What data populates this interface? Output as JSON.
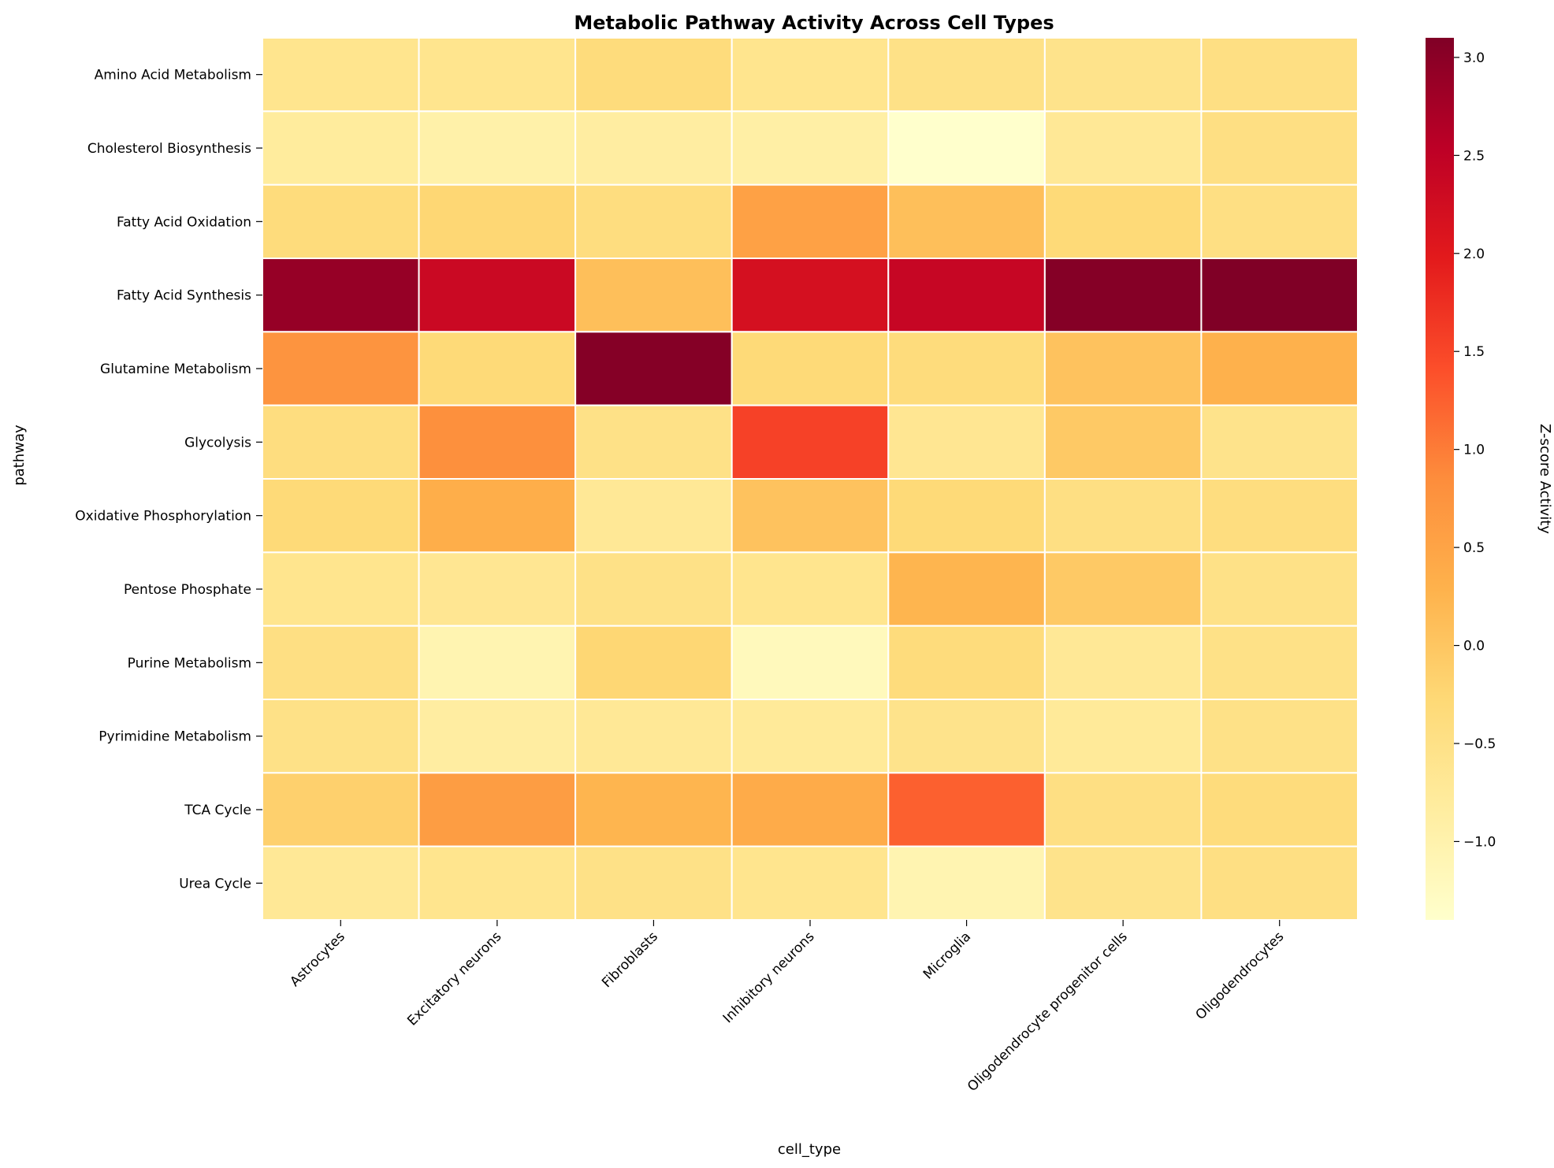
{
  "chart_data": {
    "type": "heatmap",
    "title": "Metabolic Pathway Activity Across Cell Types",
    "xlabel": "cell_type",
    "ylabel": "pathway",
    "colorbar_label": "Z-score Activity",
    "colormap": "YlOrRd",
    "color_range": [
      -1.4,
      3.1
    ],
    "colorbar_ticks": [
      "3.0",
      "2.5",
      "2.0",
      "1.5",
      "1.0",
      "0.5",
      "0.0",
      "−0.5",
      "−1.0"
    ],
    "colorbar_tick_values": [
      3.0,
      2.5,
      2.0,
      1.5,
      1.0,
      0.5,
      0.0,
      -0.5,
      -1.0
    ],
    "columns": [
      "Astrocytes",
      "Excitatory neurons",
      "Fibroblasts",
      "Inhibitory neurons",
      "Microglia",
      "Oligodendrocyte progenitor cells",
      "Oligodendrocytes"
    ],
    "rows": [
      "Amino Acid Metabolism",
      "Cholesterol Biosynthesis",
      "Fatty Acid Oxidation",
      "Fatty Acid Synthesis",
      "Glutamine Metabolism",
      "Glycolysis",
      "Oxidative Phosphorylation",
      "Pentose Phosphate",
      "Purine Metabolism",
      "Pyrimidine Metabolism",
      "TCA Cycle",
      "Urea Cycle"
    ],
    "values": [
      [
        -0.6,
        -0.6,
        -0.35,
        -0.6,
        -0.5,
        -0.55,
        -0.45
      ],
      [
        -0.8,
        -0.95,
        -0.85,
        -0.9,
        -1.4,
        -0.7,
        -0.45
      ],
      [
        -0.35,
        -0.25,
        -0.4,
        0.55,
        0.1,
        -0.3,
        -0.45
      ],
      [
        2.9,
        2.35,
        0.1,
        2.2,
        2.4,
        3.05,
        3.1
      ],
      [
        0.75,
        -0.3,
        3.05,
        -0.3,
        -0.35,
        0.05,
        0.3
      ],
      [
        -0.4,
        0.8,
        -0.5,
        1.55,
        -0.65,
        -0.05,
        -0.55
      ],
      [
        -0.3,
        0.35,
        -0.7,
        0.05,
        -0.3,
        -0.45,
        -0.4
      ],
      [
        -0.6,
        -0.65,
        -0.5,
        -0.6,
        0.25,
        -0.05,
        -0.5
      ],
      [
        -0.45,
        -1.05,
        -0.25,
        -1.2,
        -0.35,
        -0.7,
        -0.5
      ],
      [
        -0.5,
        -0.85,
        -0.7,
        -0.75,
        -0.55,
        -0.75,
        -0.5
      ],
      [
        -0.15,
        0.6,
        0.25,
        0.4,
        1.25,
        -0.45,
        -0.35
      ],
      [
        -0.7,
        -0.6,
        -0.5,
        -0.6,
        -1.05,
        -0.55,
        -0.45
      ]
    ]
  }
}
